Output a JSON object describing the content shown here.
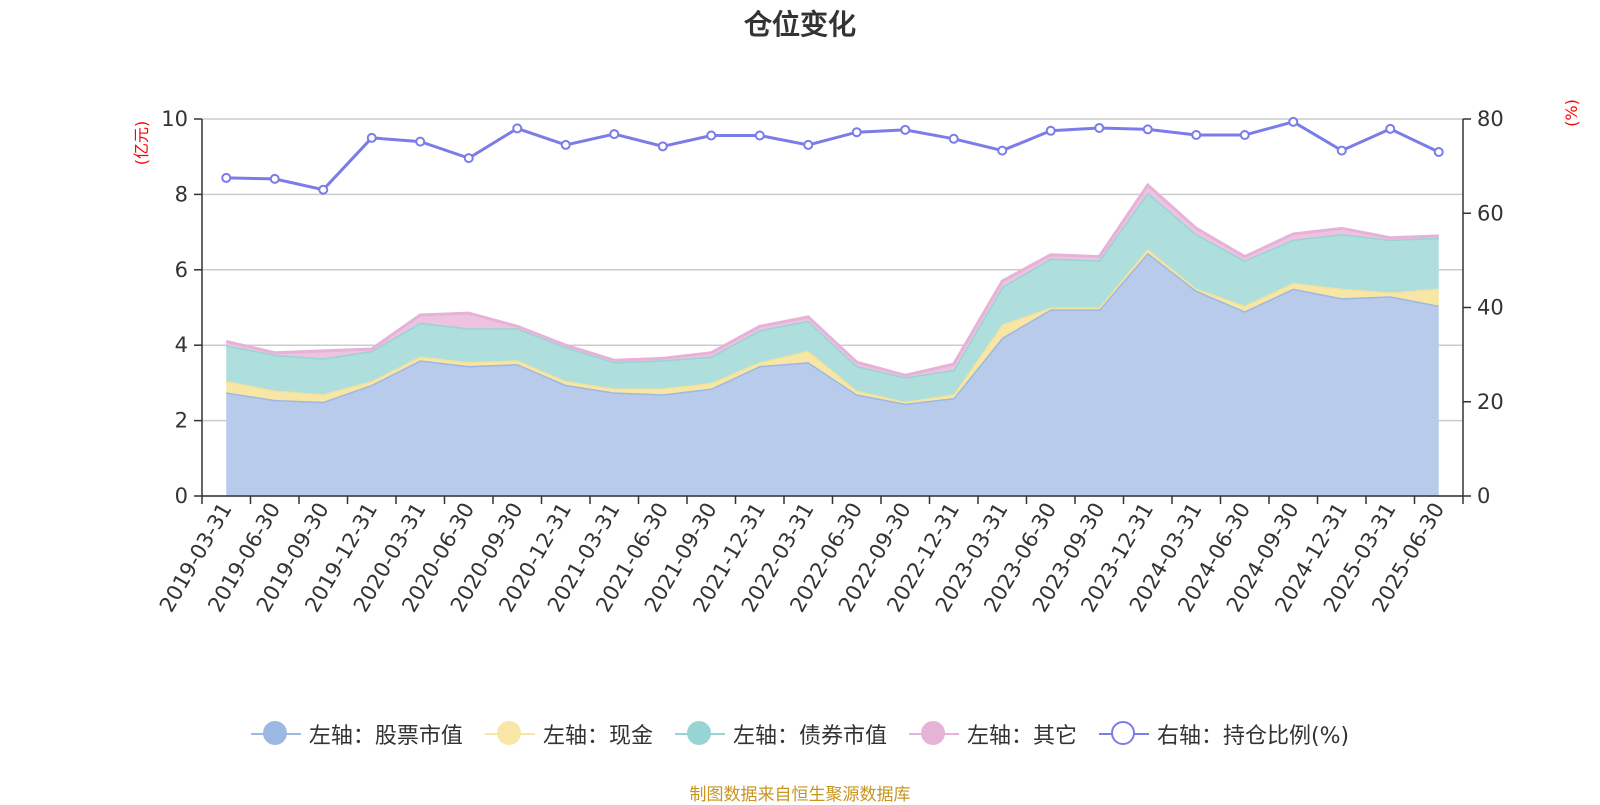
{
  "chart_data": {
    "type": "area",
    "title": "仓位变化",
    "left_axis_label": "(亿元)",
    "right_axis_label": "(%)",
    "ylim_left": [
      0,
      10
    ],
    "yticks_left": [
      "0",
      "2",
      "4",
      "6",
      "8",
      "10"
    ],
    "ylim_right": [
      0,
      80
    ],
    "yticks_right": [
      "0",
      "20",
      "40",
      "60",
      "80"
    ],
    "grid": true,
    "legend_position": "bottom",
    "stacked": true,
    "categories": [
      "2019-03-31",
      "2019-06-30",
      "2019-09-30",
      "2019-12-31",
      "2020-03-31",
      "2020-06-30",
      "2020-09-30",
      "2020-12-31",
      "2021-03-31",
      "2021-06-30",
      "2021-09-30",
      "2021-12-31",
      "2022-03-31",
      "2022-06-30",
      "2022-09-30",
      "2022-12-31",
      "2023-03-31",
      "2023-06-30",
      "2023-09-30",
      "2023-12-31",
      "2024-03-31",
      "2024-06-30",
      "2024-09-30",
      "2024-12-31",
      "2025-03-31",
      "2025-06-30"
    ],
    "series": [
      {
        "name": "左轴：股票市值",
        "axis": "left",
        "color": "#9db8e3",
        "fill": "#b8cbea",
        "values": [
          2.75,
          2.55,
          2.5,
          2.95,
          3.6,
          3.45,
          3.5,
          2.95,
          2.75,
          2.7,
          2.85,
          3.45,
          3.55,
          2.7,
          2.45,
          2.6,
          4.2,
          4.95,
          4.95,
          6.45,
          5.45,
          4.9,
          5.5,
          5.25,
          5.3,
          5.05
        ]
      },
      {
        "name": "左轴：现金",
        "axis": "left",
        "color": "#f5e29a",
        "fill": "#f7e6a6",
        "values": [
          0.3,
          0.25,
          0.2,
          0.1,
          0.1,
          0.1,
          0.1,
          0.1,
          0.1,
          0.15,
          0.15,
          0.1,
          0.3,
          0.1,
          0.05,
          0.1,
          0.35,
          0.05,
          0.05,
          0.1,
          0.05,
          0.15,
          0.15,
          0.25,
          0.1,
          0.45
        ]
      },
      {
        "name": "左轴：债券市值",
        "axis": "left",
        "color": "#96d5d3",
        "fill": "#afdfdc",
        "values": [
          0.95,
          0.95,
          0.95,
          0.8,
          0.9,
          0.9,
          0.85,
          0.9,
          0.7,
          0.75,
          0.7,
          0.85,
          0.8,
          0.65,
          0.65,
          0.65,
          1.0,
          1.3,
          1.25,
          1.5,
          1.45,
          1.2,
          1.15,
          1.45,
          1.4,
          1.35
        ]
      },
      {
        "name": "左轴：其它",
        "axis": "left",
        "color": "#e6b3d8",
        "fill": "#eec3e2",
        "values": [
          0.1,
          0.05,
          0.2,
          0.05,
          0.2,
          0.4,
          0.05,
          0.05,
          0.05,
          0.05,
          0.1,
          0.1,
          0.1,
          0.1,
          0.05,
          0.15,
          0.15,
          0.1,
          0.1,
          0.2,
          0.15,
          0.1,
          0.15,
          0.15,
          0.05,
          0.05
        ]
      },
      {
        "name": "右轴：持仓比例(%)",
        "axis": "right",
        "color": "#7a7de8",
        "values": [
          67.5,
          67.3,
          65.0,
          76.0,
          75.2,
          71.7,
          78.0,
          74.5,
          76.8,
          74.2,
          76.5,
          76.5,
          74.5,
          77.2,
          77.7,
          75.8,
          73.3,
          77.5,
          78.1,
          77.8,
          76.6,
          76.6,
          79.4,
          73.3,
          77.9,
          73.0
        ]
      }
    ]
  },
  "legend": {
    "items": [
      {
        "label": "左轴：股票市值",
        "color": "#9db8e3",
        "hollow": false
      },
      {
        "label": "左轴：现金",
        "color": "#f7e6a6",
        "hollow": false
      },
      {
        "label": "左轴：债券市值",
        "color": "#96d5d3",
        "hollow": false
      },
      {
        "label": "左轴：其它",
        "color": "#e6b3d8",
        "hollow": false
      },
      {
        "label": "右轴：持仓比例(%)",
        "color": "#7a7de8",
        "hollow": true
      }
    ]
  },
  "footer": {
    "source": "制图数据来自恒生聚源数据库"
  }
}
